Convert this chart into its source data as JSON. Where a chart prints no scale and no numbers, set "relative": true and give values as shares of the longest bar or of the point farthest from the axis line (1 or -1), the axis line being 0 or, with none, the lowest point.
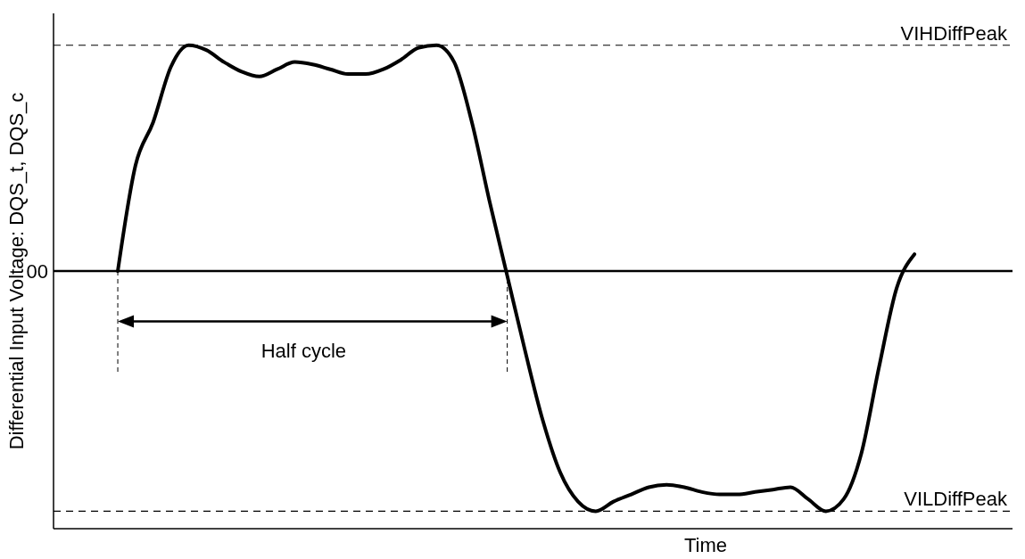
{
  "chart_data": {
    "type": "line",
    "relative": true,
    "xlabel": "Time",
    "ylabel": "Differential Input Voltage: DQS_t, DQS_c",
    "categories": [
      null,
      null,
      null,
      null,
      null,
      null,
      null,
      null,
      null,
      null,
      null,
      null,
      null,
      null,
      null,
      null,
      null,
      null,
      null,
      null,
      null,
      null,
      null,
      null,
      null,
      null,
      null,
      null,
      null,
      null,
      null,
      null,
      null,
      null,
      null,
      null,
      null,
      null,
      null,
      null,
      null,
      null,
      null,
      null,
      null,
      null
    ],
    "series": [
      {
        "color": "#000000",
        "values": [
          0,
          0.44,
          0.62,
          0.85,
          0.94,
          0.92,
          0.87,
          0.83,
          0.81,
          0.84,
          0.87,
          0.86,
          0.84,
          0.82,
          0.82,
          0.84,
          0.88,
          0.93,
          0.94,
          0.87,
          0.62,
          0.29,
          -0.02,
          -0.33,
          -0.62,
          -0.84,
          -0.96,
          -1,
          -0.96,
          -0.93,
          -0.9,
          -0.89,
          -0.9,
          -0.92,
          -0.93,
          -0.93,
          -0.92,
          -0.91,
          -0.9,
          -0.95,
          -1,
          -0.95,
          -0.76,
          -0.4,
          -0.07,
          0.07
        ]
      }
    ],
    "ref_lines": [
      {
        "axis": "y",
        "value": 0.94,
        "label": "VIHDiffPeak",
        "line_style": "dashed",
        "color": "#000000"
      },
      {
        "axis": "y",
        "value": 0,
        "label": "00",
        "line_style": "solid",
        "color": "#000000"
      },
      {
        "axis": "y",
        "value": -1,
        "label": "VILDiffPeak",
        "line_style": "dashed",
        "color": "#000000"
      }
    ],
    "annotations": [
      "Half cycle"
    ],
    "marker": "none",
    "line_style": "solid"
  }
}
